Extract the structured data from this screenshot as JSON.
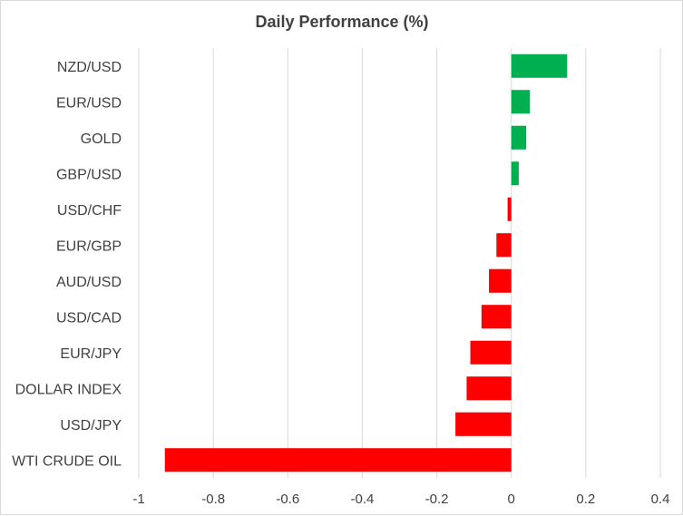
{
  "chart_data": {
    "type": "bar",
    "orientation": "horizontal",
    "title": "Daily Performance (%)",
    "xlabel": "",
    "ylabel": "",
    "xlim": [
      -1,
      0.4
    ],
    "xticks": [
      -1,
      -0.8,
      -0.6,
      -0.4,
      -0.2,
      0,
      0.2,
      0.4
    ],
    "xtick_labels": [
      "-1",
      "-0.8",
      "-0.6",
      "-0.4",
      "-0.2",
      "0",
      "0.2",
      "0.4"
    ],
    "grid": true,
    "legend": "none",
    "categories": [
      "NZD/USD",
      "EUR/USD",
      "GOLD",
      "GBP/USD",
      "USD/CHF",
      "EUR/GBP",
      "AUD/USD",
      "USD/CAD",
      "EUR/JPY",
      "DOLLAR INDEX",
      "USD/JPY",
      "WTI CRUDE OIL"
    ],
    "values": [
      0.15,
      0.05,
      0.04,
      0.02,
      -0.01,
      -0.04,
      -0.06,
      -0.08,
      -0.11,
      -0.12,
      -0.15,
      -0.93
    ],
    "colors": {
      "positive": "#00b050",
      "negative": "#ff0000"
    }
  }
}
